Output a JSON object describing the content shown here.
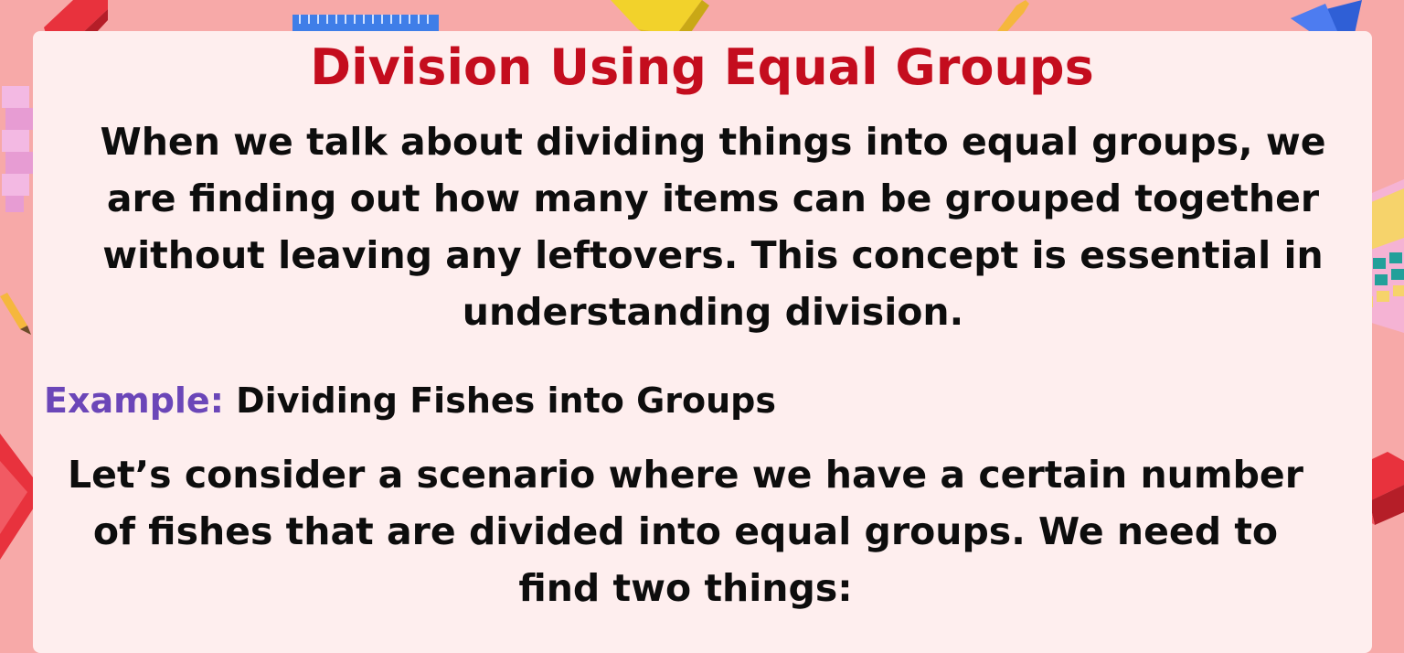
{
  "slide": {
    "title": "Division Using Equal Groups",
    "intro_lines": [
      "When we talk about dividing things into equal groups, we",
      "are finding out how many items can be grouped together",
      "without leaving any leftovers. This concept is essential in",
      "understanding division."
    ],
    "example": {
      "label": "Example:",
      "text": "Dividing Fishes into Groups"
    },
    "scenario_lines": [
      "Let’s consider a scenario where we have a certain number",
      "of fishes that are divided into equal groups. We need to",
      "find two things:"
    ]
  },
  "colors": {
    "background": "#f7a9a8",
    "card": "#feeeee",
    "title": "#c40d1e",
    "example_label": "#6b46b8",
    "body_text": "#0d0d0d"
  },
  "decorations": [
    "red-block-icon",
    "ruler-icon",
    "yellow-block-icon",
    "pencil-icon",
    "blue-pyramid-icon",
    "pink-blocks-icon",
    "calculator-icon",
    "red-gem-icon",
    "red-cube-icon"
  ]
}
